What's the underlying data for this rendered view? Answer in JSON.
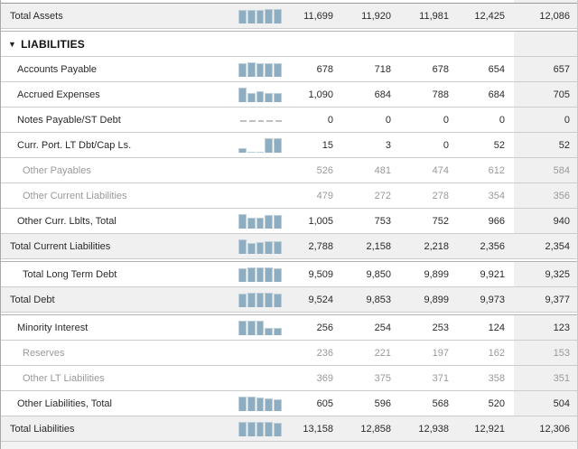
{
  "table": {
    "rows": [
      {
        "label": "Total Assets",
        "style": "total",
        "indent": 0,
        "separator_before": false,
        "has_spark": true,
        "values": [
          "11,699",
          "11,920",
          "11,981",
          "12,425",
          "12,086"
        ]
      },
      {
        "label": "LIABILITIES",
        "style": "section-header",
        "indent": 0,
        "separator_before": true,
        "has_spark": false,
        "collapse_icon": "▼",
        "values": []
      },
      {
        "label": "Accounts Payable",
        "style": "item",
        "indent": 1,
        "separator_before": false,
        "has_spark": true,
        "values": [
          "678",
          "718",
          "678",
          "654",
          "657"
        ]
      },
      {
        "label": "Accrued Expenses",
        "style": "item",
        "indent": 1,
        "separator_before": false,
        "has_spark": true,
        "values": [
          "1,090",
          "684",
          "788",
          "684",
          "705"
        ]
      },
      {
        "label": "Notes Payable/ST Debt",
        "style": "item",
        "indent": 1,
        "separator_before": false,
        "has_spark": true,
        "values": [
          "0",
          "0",
          "0",
          "0",
          "0"
        ]
      },
      {
        "label": "Curr. Port. LT Dbt/Cap Ls.",
        "style": "item",
        "indent": 1,
        "separator_before": false,
        "has_spark": true,
        "values": [
          "15",
          "3",
          "0",
          "52",
          "52"
        ]
      },
      {
        "label": "Other Payables",
        "style": "subitem",
        "indent": 2,
        "separator_before": false,
        "has_spark": false,
        "values": [
          "526",
          "481",
          "474",
          "612",
          "584"
        ]
      },
      {
        "label": "Other Current Liabilities",
        "style": "subitem",
        "indent": 2,
        "separator_before": false,
        "has_spark": false,
        "values": [
          "479",
          "272",
          "278",
          "354",
          "356"
        ]
      },
      {
        "label": "Other Curr. Lblts, Total",
        "style": "item",
        "indent": 1,
        "separator_before": false,
        "has_spark": true,
        "values": [
          "1,005",
          "753",
          "752",
          "966",
          "940"
        ]
      },
      {
        "label": "Total Current Liabilities",
        "style": "total",
        "indent": 0,
        "separator_before": false,
        "has_spark": true,
        "values": [
          "2,788",
          "2,158",
          "2,218",
          "2,356",
          "2,354"
        ]
      },
      {
        "label": "Total Long Term Debt",
        "style": "item",
        "indent": 2,
        "separator_before": true,
        "has_spark": true,
        "values": [
          "9,509",
          "9,850",
          "9,899",
          "9,921",
          "9,325"
        ]
      },
      {
        "label": "Total Debt",
        "style": "total",
        "indent": 0,
        "separator_before": false,
        "has_spark": true,
        "values": [
          "9,524",
          "9,853",
          "9,899",
          "9,973",
          "9,377"
        ]
      },
      {
        "label": "Minority Interest",
        "style": "item",
        "indent": 1,
        "separator_before": true,
        "has_spark": true,
        "values": [
          "256",
          "254",
          "253",
          "124",
          "123"
        ]
      },
      {
        "label": "Reserves",
        "style": "subitem",
        "indent": 2,
        "separator_before": false,
        "has_spark": false,
        "values": [
          "236",
          "221",
          "197",
          "162",
          "153"
        ]
      },
      {
        "label": "Other LT Liabilities",
        "style": "subitem",
        "indent": 2,
        "separator_before": false,
        "has_spark": false,
        "values": [
          "369",
          "375",
          "371",
          "358",
          "351"
        ]
      },
      {
        "label": "Other Liabilities, Total",
        "style": "item",
        "indent": 1,
        "separator_before": false,
        "has_spark": true,
        "values": [
          "605",
          "596",
          "568",
          "520",
          "504"
        ]
      },
      {
        "label": "Total Liabilities",
        "style": "total",
        "indent": 0,
        "separator_before": false,
        "has_spark": true,
        "values": [
          "13,158",
          "12,858",
          "12,938",
          "12,921",
          "12,306"
        ]
      }
    ]
  },
  "colors": {
    "bar_fill": "#8fadc0",
    "bar_border": "#bccfdb",
    "zero_dash": "#c0c0c0",
    "total_row_bg": "#f0f0f0",
    "shaded_column_bg": "#f0f0f0",
    "row_border": "#cccccc",
    "group_separator": "#b2b2b2",
    "subitem_text": "#999999",
    "text": "#2a2a2a",
    "header_text": "#111111"
  }
}
